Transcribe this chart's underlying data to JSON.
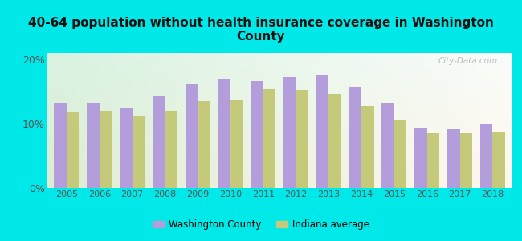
{
  "title": "40-64 population without health insurance coverage in Washington\nCounty",
  "years": [
    2005,
    2006,
    2007,
    2008,
    2009,
    2010,
    2011,
    2012,
    2013,
    2014,
    2015,
    2016,
    2017,
    2018
  ],
  "washington_county": [
    13.2,
    13.2,
    12.5,
    14.2,
    16.2,
    17.0,
    16.6,
    17.2,
    17.6,
    15.8,
    13.2,
    9.4,
    9.3,
    10.0
  ],
  "indiana_average": [
    11.8,
    12.0,
    11.1,
    12.0,
    13.5,
    13.8,
    15.4,
    15.3,
    14.6,
    12.7,
    10.5,
    8.6,
    8.5,
    8.8
  ],
  "county_color": "#b39ddb",
  "indiana_color": "#c5c97a",
  "bg_color": "#00e8e8",
  "ylim": [
    0,
    21
  ],
  "yticks": [
    0,
    10,
    20
  ],
  "ytick_labels": [
    "0%",
    "10%",
    "20%"
  ],
  "bar_width": 0.38,
  "legend_county": "Washington County",
  "legend_indiana": "Indiana average",
  "watermark": "City-Data.com"
}
